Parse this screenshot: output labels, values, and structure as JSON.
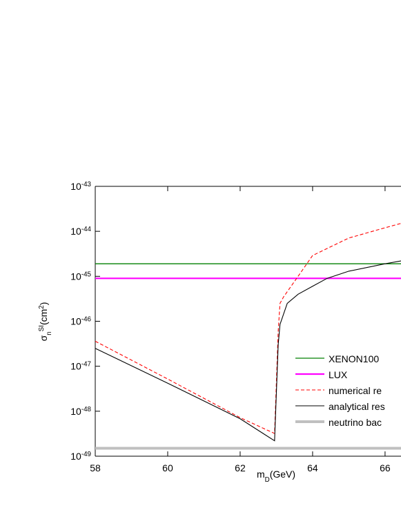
{
  "chart_data": {
    "type": "line",
    "xlabel": "m_{D}(GeV)",
    "ylabel": "σ_{n}^{SI}(cm^{2})",
    "xlim": [
      58,
      66.44
    ],
    "xticks": [
      58,
      60,
      62,
      64,
      66
    ],
    "ylim": [
      1e-49,
      1e-43
    ],
    "log_y": true,
    "yticks": [
      {
        "value": 1e-49,
        "label": "10^{-49}"
      },
      {
        "value": 1e-48,
        "label": "10^{-48}"
      },
      {
        "value": 1e-47,
        "label": "10^{-47}"
      },
      {
        "value": 1e-46,
        "label": "10^{-46}"
      },
      {
        "value": 1e-45,
        "label": "10^{-45}"
      },
      {
        "value": 1e-44,
        "label": "10^{-44}"
      },
      {
        "value": 1e-43,
        "label": "10^{-43}"
      }
    ],
    "series": [
      {
        "name": "XENON100",
        "color": "#007f00",
        "width": 1.3,
        "x": [
          58,
          66.44
        ],
        "values": [
          1.9e-45,
          1.9e-45
        ]
      },
      {
        "name": "LUX",
        "color": "#ff00ff",
        "width": 2.2,
        "x": [
          58,
          66.44
        ],
        "values": [
          9e-46,
          9e-46
        ]
      },
      {
        "name": "numerical re",
        "color": "#ff0000",
        "dash": true,
        "width": 1.1,
        "x": [
          58,
          60,
          62,
          62.95,
          63.05,
          63.1,
          63.2,
          63.56,
          64,
          65,
          66,
          66.44
        ],
        "values": [
          3.6e-47,
          5.2e-48,
          7.2e-49,
          3.2e-49,
          6e-47,
          2.5e-46,
          3.5e-46,
          9e-46,
          2.9e-45,
          7.1e-45,
          1.2e-44,
          1.5e-44
        ]
      },
      {
        "name": "analytical res",
        "color": "#000000",
        "width": 1.1,
        "x": [
          58,
          60,
          62,
          62.95,
          63.05,
          63.1,
          63.3,
          63.6,
          64,
          64.4,
          65,
          66,
          66.44
        ],
        "values": [
          2.5e-47,
          4.2e-48,
          6.8e-49,
          2.2e-49,
          3e-47,
          8.5e-47,
          2.5e-46,
          4e-46,
          6e-46,
          9e-46,
          1.3e-45,
          1.9e-45,
          2.2e-45
        ]
      },
      {
        "name": "neutrino bac",
        "color": "#c0c0c0",
        "width": 4,
        "x": [
          58,
          66.44
        ],
        "values": [
          1.5e-49,
          1.5e-49
        ]
      }
    ]
  }
}
